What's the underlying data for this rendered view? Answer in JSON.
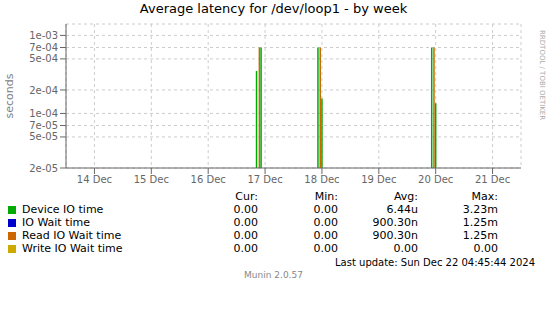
{
  "chart_data": {
    "type": "stem",
    "title": "Average latency for /dev/loop1 - by week",
    "ylabel": "seconds",
    "log": "y",
    "grid": true,
    "xlim": [
      0.5,
      8.5
    ],
    "xticks": [
      {
        "value": 1,
        "label": "14 Dec"
      },
      {
        "value": 2,
        "label": "15 Dec"
      },
      {
        "value": 3,
        "label": "16 Dec"
      },
      {
        "value": 4,
        "label": "17 Dec"
      },
      {
        "value": 5,
        "label": "18 Dec"
      },
      {
        "value": 6,
        "label": "19 Dec"
      },
      {
        "value": 7,
        "label": "20 Dec"
      },
      {
        "value": 8,
        "label": "21 Dec"
      }
    ],
    "ylim": [
      2e-05,
      0.0014
    ],
    "yticks": [
      {
        "value": 2e-05,
        "label": "2e-05"
      },
      {
        "value": 5e-05,
        "label": "5e-05"
      },
      {
        "value": 7e-05,
        "label": "7e-05"
      },
      {
        "value": 0.0001,
        "label": "1e-04"
      },
      {
        "value": 0.0002,
        "label": "2e-04"
      },
      {
        "value": 0.0005,
        "label": "5e-04"
      },
      {
        "value": 0.0007,
        "label": "7e-04"
      },
      {
        "value": 0.001,
        "label": "1e-03"
      }
    ],
    "stats_header": [
      "Cur:",
      "Min:",
      "Avg:",
      "Max:"
    ],
    "series": [
      {
        "name": "Device IO time",
        "color": "#00aa00",
        "x": [
          3.85,
          3.93,
          4.93,
          5.0,
          6.93,
          7.0
        ],
        "values": [
          0.00035,
          0.0007,
          0.0007,
          0.000155,
          0.0007,
          0.000135
        ],
        "stats": [
          "0.00",
          "0.00",
          "6.44u",
          "3.23m"
        ]
      },
      {
        "name": "IO Wait time",
        "color": "#0000cc",
        "x": [],
        "values": [],
        "stats": [
          "0.00",
          "0.00",
          "900.30n",
          "1.25m"
        ]
      },
      {
        "name": "Read IO Wait time",
        "color": "#cc6600",
        "x": [
          3.9,
          4.97,
          6.97
        ],
        "values": [
          0.0007,
          0.0007,
          0.0007
        ],
        "stats": [
          "0.00",
          "0.00",
          "900.30n",
          "1.25m"
        ]
      },
      {
        "name": "Write IO Wait time",
        "color": "#ccaa00",
        "x": [],
        "values": [],
        "stats": [
          "0.00",
          "0.00",
          "0.00",
          "0.00"
        ]
      }
    ],
    "last_update": "Last update: Sun Dec 22 04:45:44 2024",
    "version": "Munin 2.0.57",
    "watermark": "RRDTOOL / TOBI OETIKER"
  }
}
